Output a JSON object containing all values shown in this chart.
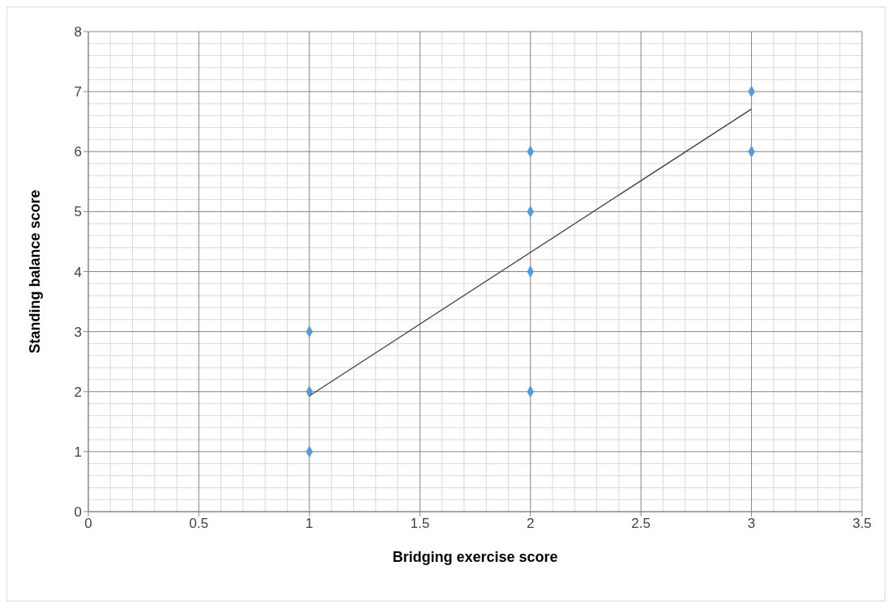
{
  "chart_data": {
    "type": "scatter",
    "xlabel": "Bridging exercise score",
    "ylabel": "Standing balance score",
    "xlim": [
      0,
      3.5
    ],
    "xticks": [
      0,
      0.5,
      1,
      1.5,
      2,
      2.5,
      3,
      3.5
    ],
    "ylim": [
      0,
      8
    ],
    "yticks": [
      0,
      1,
      2,
      3,
      4,
      5,
      6,
      7,
      8
    ],
    "grid": true,
    "legend": false,
    "series": [
      {
        "type": "scatter",
        "color": "#5b9bd5",
        "marker": "diamond",
        "x": [
          1,
          1,
          1,
          2,
          2,
          2,
          2,
          3,
          3
        ],
        "values": [
          1,
          2,
          3,
          2,
          4,
          5,
          6,
          6,
          7
        ]
      },
      {
        "type": "line",
        "color": "#404040",
        "marker": "none",
        "line_style": "solid",
        "x": [
          1,
          3
        ],
        "values": [
          1.93,
          6.71
        ]
      }
    ]
  }
}
